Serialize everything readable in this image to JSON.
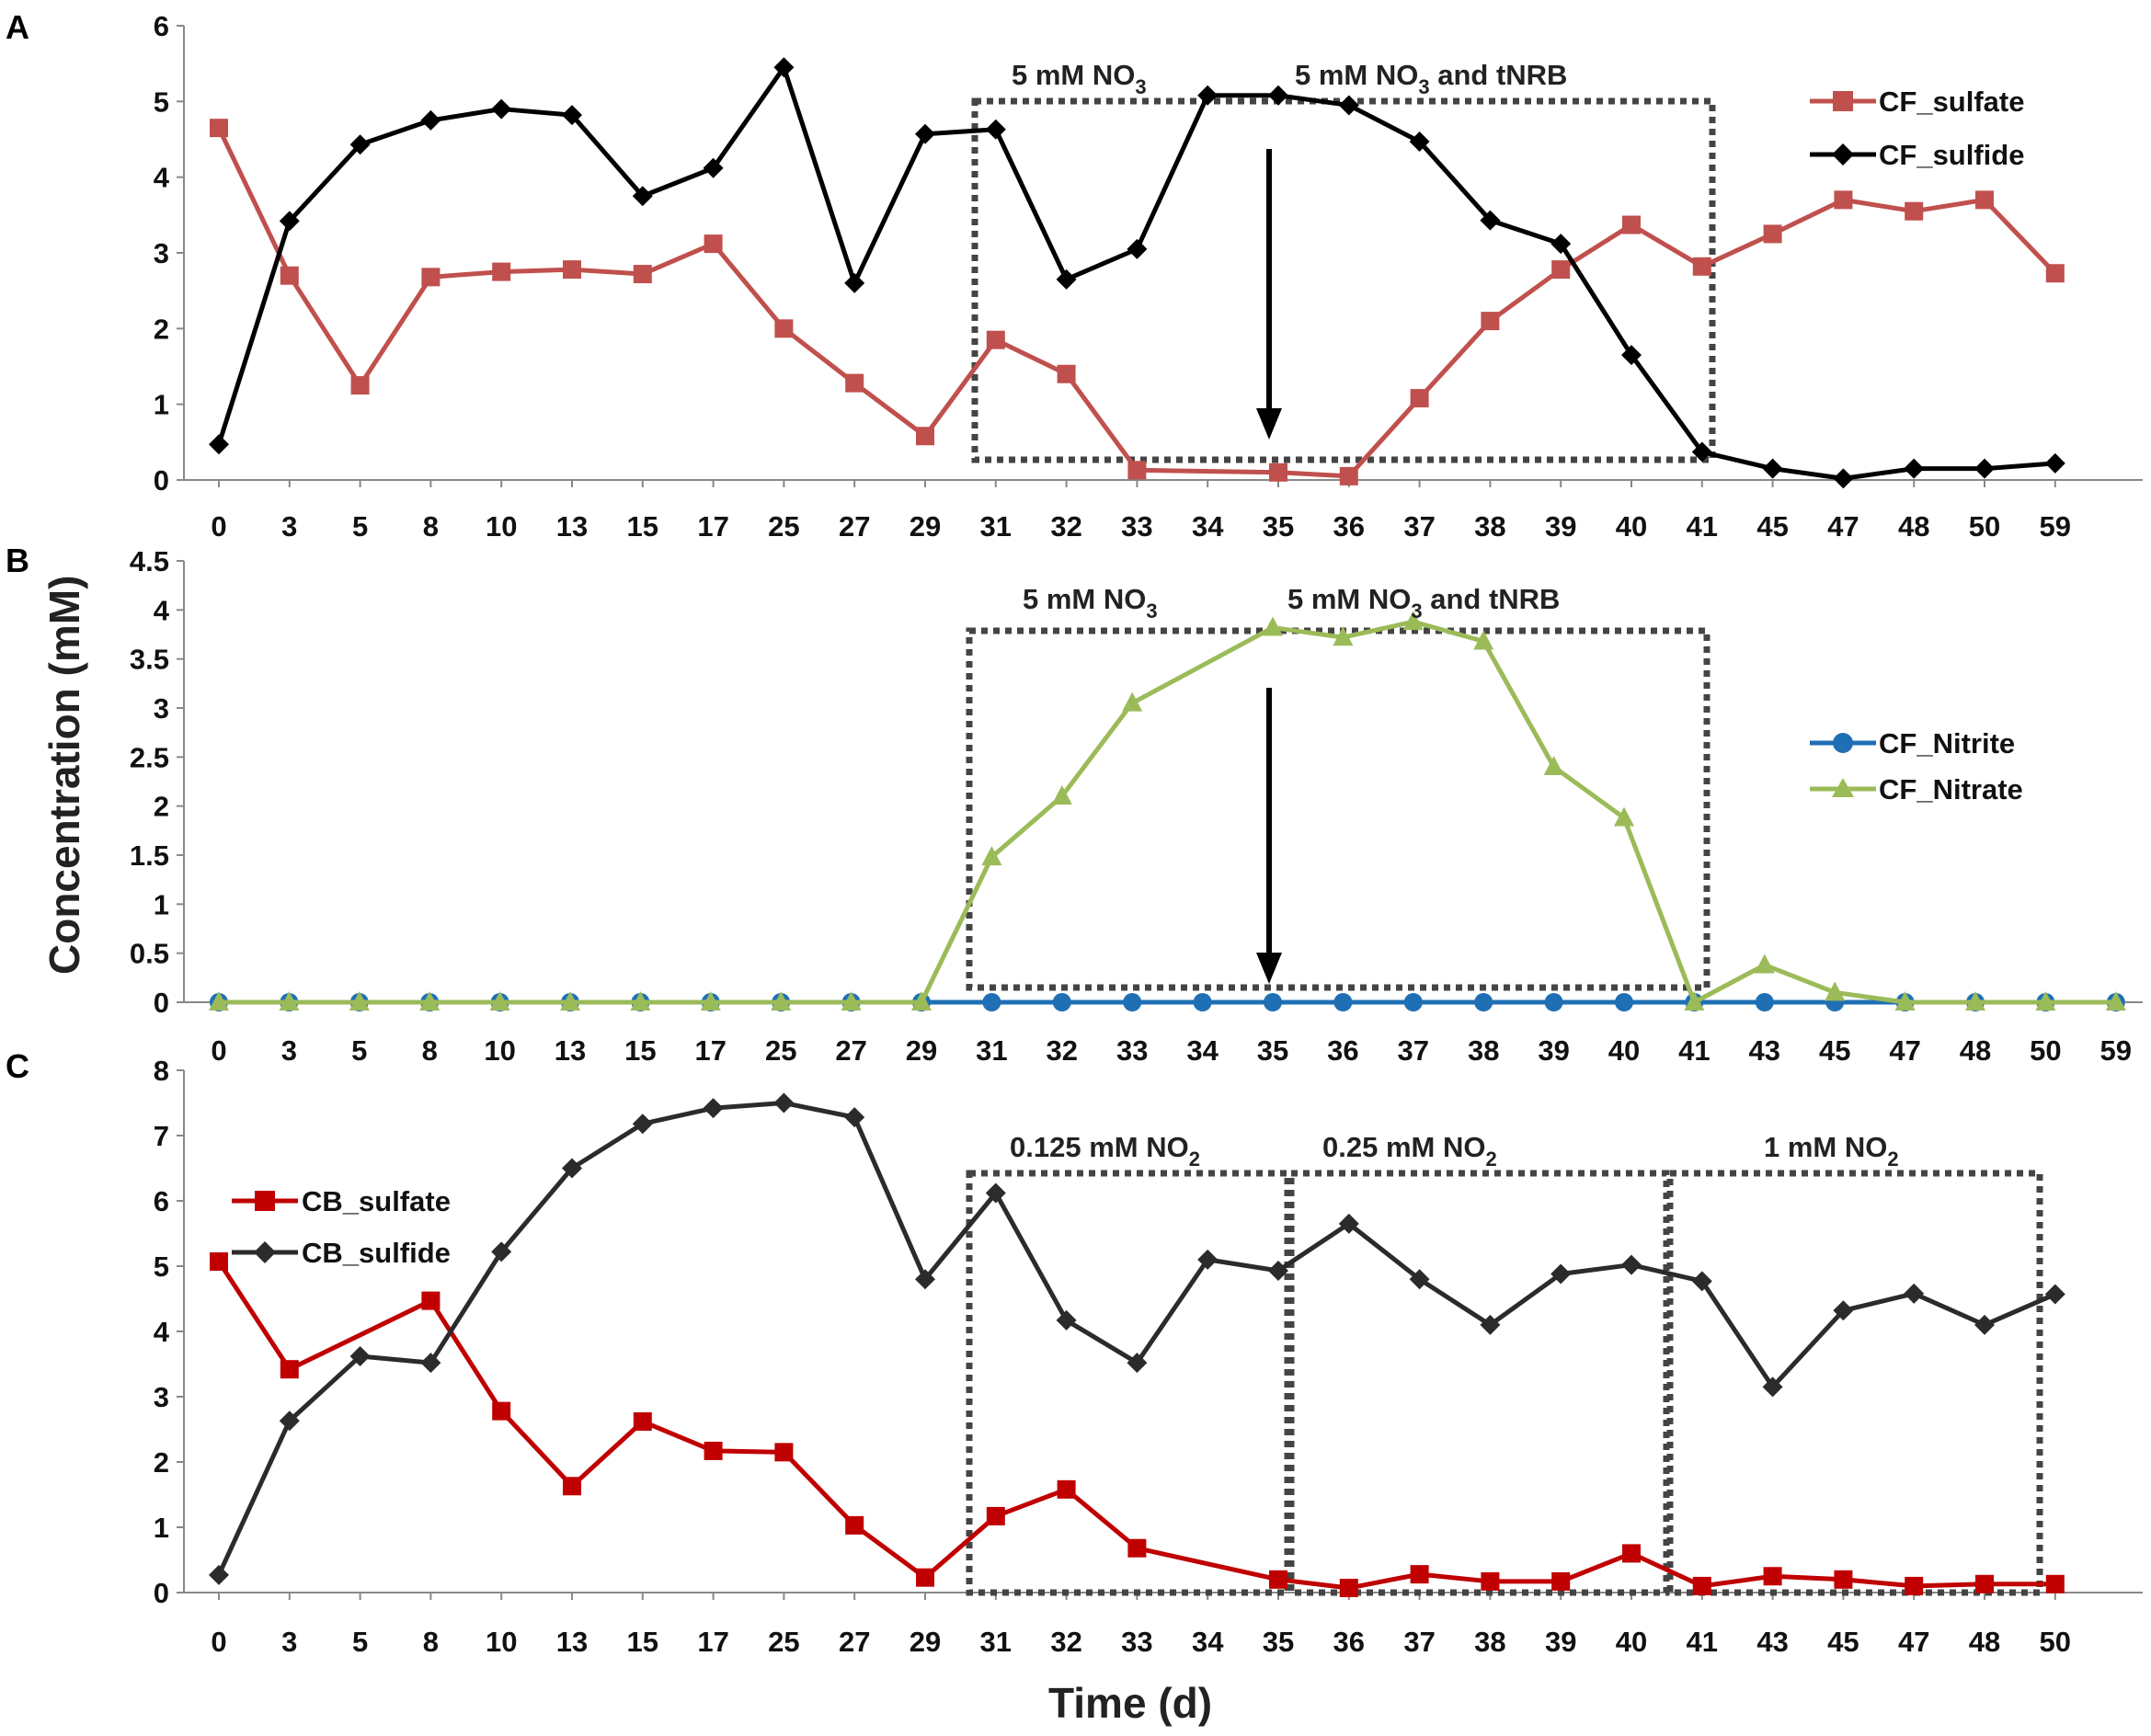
{
  "figure": {
    "ylabel": "Concentration (mM)",
    "xlabel": "Time (d)"
  },
  "chart_data": [
    {
      "panel": "A",
      "type": "line",
      "categories": [
        "0",
        "3",
        "5",
        "8",
        "10",
        "13",
        "15",
        "17",
        "25",
        "27",
        "29",
        "31",
        "32",
        "33",
        "34",
        "35",
        "36",
        "37",
        "38",
        "39",
        "40",
        "41",
        "45",
        "47",
        "48",
        "50",
        "59"
      ],
      "ylim": [
        0,
        6
      ],
      "yticks": [
        "0",
        "1",
        "2",
        "3",
        "4",
        "5",
        "6"
      ],
      "legend_position": "top-right",
      "series": [
        {
          "name": "CF_sulfate",
          "color": "#c0504d",
          "marker": "square",
          "values": [
            4.65,
            2.7,
            1.25,
            2.68,
            2.75,
            2.78,
            2.72,
            3.12,
            2.0,
            1.28,
            0.58,
            1.85,
            1.4,
            0.13,
            null,
            0.1,
            0.05,
            1.08,
            2.1,
            2.78,
            3.37,
            2.82,
            3.25,
            3.7,
            3.55,
            3.7,
            2.73
          ]
        },
        {
          "name": "CF_sulfide",
          "color": "#000000",
          "marker": "diamond",
          "values": [
            0.47,
            3.42,
            4.43,
            4.75,
            4.9,
            4.82,
            3.75,
            4.12,
            5.45,
            2.6,
            4.57,
            4.63,
            2.65,
            3.05,
            5.08,
            5.08,
            4.95,
            4.47,
            3.43,
            3.12,
            1.65,
            0.37,
            0.15,
            0.02,
            0.15,
            0.15,
            0.22
          ]
        }
      ],
      "annotations": [
        {
          "label_main": "5 mM NO",
          "label_sub": "3",
          "label_rest": ""
        },
        {
          "label_main": "5 mM NO",
          "label_sub": "3",
          "label_rest": " and tNRB"
        }
      ]
    },
    {
      "panel": "B",
      "type": "line",
      "categories": [
        "0",
        "3",
        "5",
        "8",
        "10",
        "13",
        "15",
        "17",
        "25",
        "27",
        "29",
        "31",
        "32",
        "33",
        "34",
        "35",
        "36",
        "37",
        "38",
        "39",
        "40",
        "41",
        "43",
        "45",
        "47",
        "48",
        "50",
        "59"
      ],
      "ylim": [
        0,
        4.5
      ],
      "yticks": [
        "0",
        "0.5",
        "1",
        "1.5",
        "2",
        "2.5",
        "3",
        "3.5",
        "4",
        "4.5"
      ],
      "legend_position": "right",
      "series": [
        {
          "name": "CF_Nitrite",
          "color": "#1f6fb5",
          "marker": "circle",
          "values": [
            0,
            0,
            0,
            0,
            0,
            0,
            0,
            0,
            0,
            0,
            0,
            0,
            0,
            0,
            0,
            0,
            0,
            0,
            0,
            0,
            0,
            0,
            0,
            0,
            0,
            0,
            0,
            0
          ]
        },
        {
          "name": "CF_Nitrate",
          "color": "#9bbb59",
          "marker": "triangle",
          "values": [
            0,
            0,
            0,
            0,
            0,
            0,
            0,
            0,
            0,
            0,
            0,
            1.48,
            2.1,
            3.05,
            null,
            3.82,
            3.72,
            3.88,
            3.68,
            2.4,
            1.88,
            0,
            0.38,
            0.1,
            0,
            0,
            0,
            0
          ]
        }
      ],
      "annotations": [
        {
          "label_main": "5 mM NO",
          "label_sub": "3",
          "label_rest": ""
        },
        {
          "label_main": "5 mM NO",
          "label_sub": "3",
          "label_rest": " and tNRB"
        }
      ]
    },
    {
      "panel": "C",
      "type": "line",
      "categories": [
        "0",
        "3",
        "5",
        "8",
        "10",
        "13",
        "15",
        "17",
        "25",
        "27",
        "29",
        "31",
        "32",
        "33",
        "34",
        "35",
        "36",
        "37",
        "38",
        "39",
        "40",
        "41",
        "43",
        "45",
        "47",
        "48",
        "50"
      ],
      "ylim": [
        0,
        8
      ],
      "yticks": [
        "0",
        "1",
        "2",
        "3",
        "4",
        "5",
        "6",
        "7",
        "8"
      ],
      "legend_position": "top-left",
      "series": [
        {
          "name": "CB_sulfate",
          "color": "#c00000",
          "marker": "square",
          "values": [
            5.07,
            3.42,
            null,
            4.47,
            2.78,
            1.63,
            2.62,
            2.17,
            2.15,
            1.03,
            0.23,
            1.17,
            1.58,
            0.68,
            null,
            0.2,
            0.07,
            0.28,
            0.17,
            0.17,
            0.6,
            0.1,
            0.25,
            0.2,
            0.1,
            0.13,
            0.13
          ]
        },
        {
          "name": "CB_sulfide",
          "color": "#2b2b2b",
          "marker": "diamond",
          "values": [
            0.27,
            2.63,
            3.62,
            3.52,
            5.22,
            6.5,
            7.18,
            7.42,
            7.5,
            7.28,
            4.8,
            6.12,
            4.17,
            3.52,
            5.1,
            4.93,
            5.65,
            4.8,
            4.1,
            4.88,
            5.02,
            4.77,
            3.15,
            4.32,
            4.58,
            4.1,
            4.57
          ]
        }
      ],
      "annotations": [
        {
          "label_main": "0.125 mM NO",
          "label_sub": "2",
          "label_rest": ""
        },
        {
          "label_main": "0.25 mM NO",
          "label_sub": "2",
          "label_rest": ""
        },
        {
          "label_main": "1 mM NO",
          "label_sub": "2",
          "label_rest": ""
        }
      ]
    }
  ]
}
